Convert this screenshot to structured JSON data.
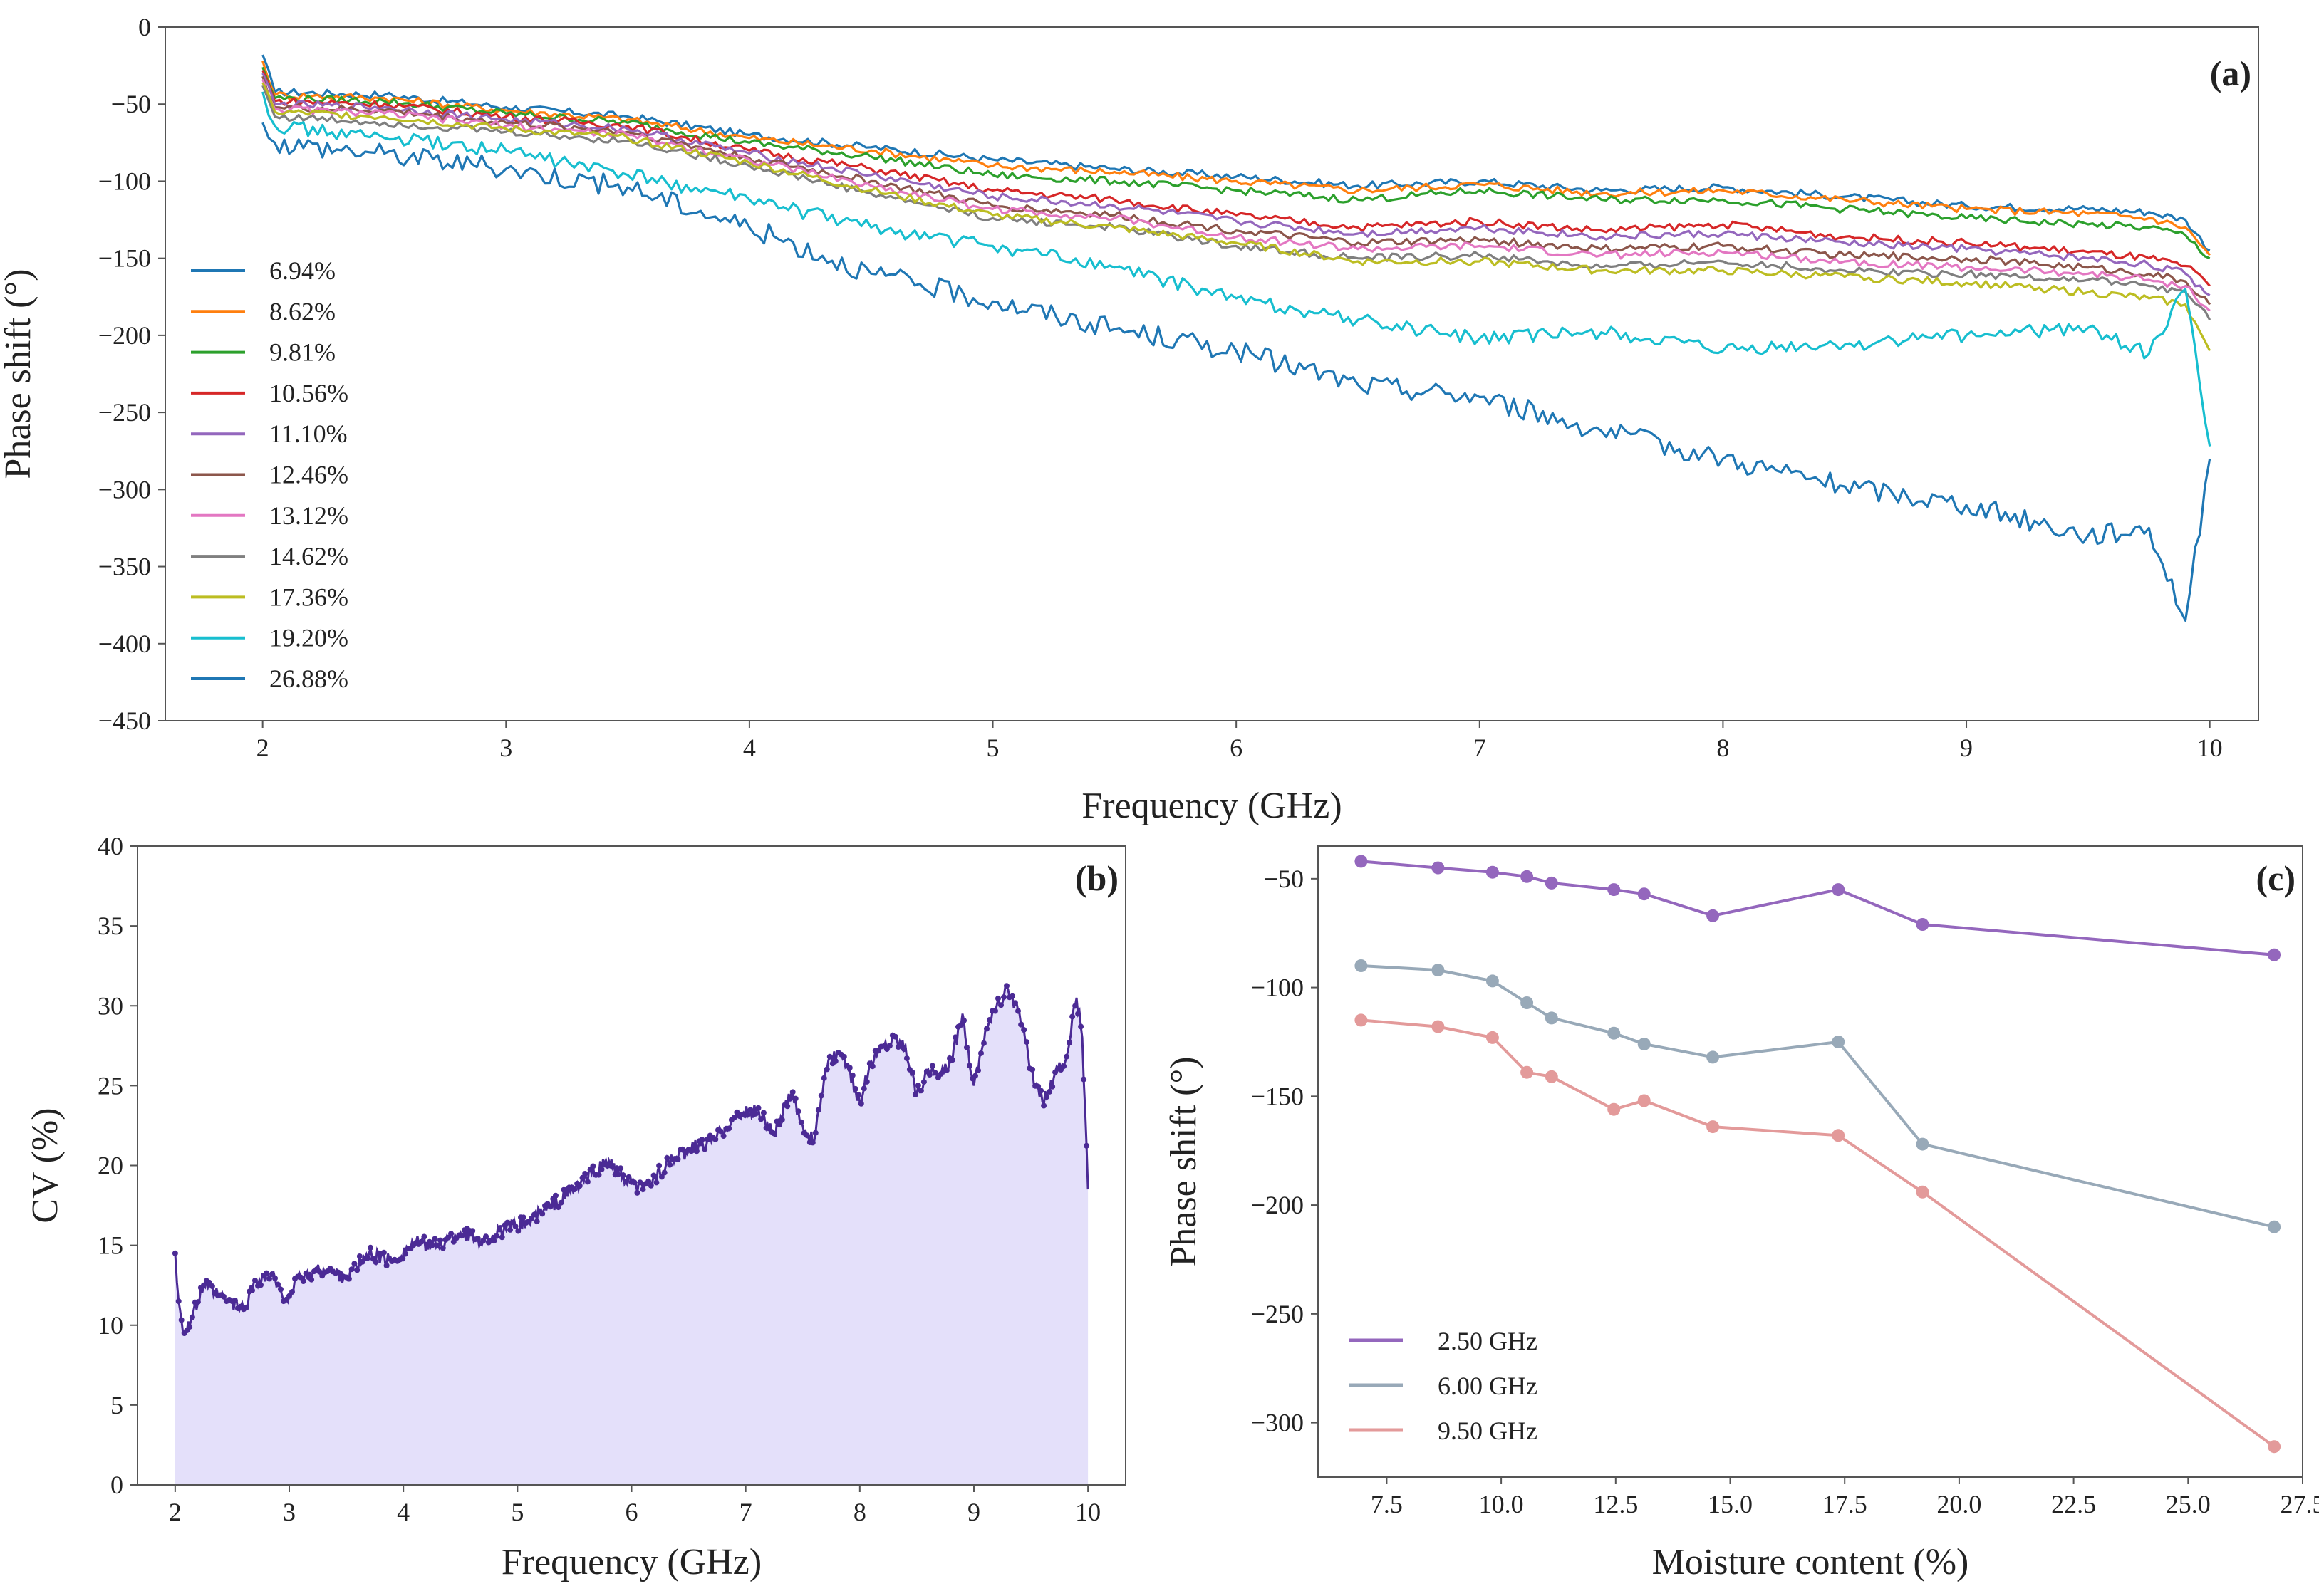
{
  "colors": {
    "blue": "#1f77b4",
    "orange": "#ff7f0e",
    "green": "#2ca02c",
    "red": "#d62728",
    "purple": "#9467bd",
    "brown": "#8c564b",
    "pink": "#e377c2",
    "gray": "#7f7f7f",
    "olive": "#bcbd22",
    "cyan": "#17becf",
    "axis": "#555555",
    "cv_line": "#4b2a95",
    "cv_fill": "#e4e0fa",
    "c_purple": "#9467bd",
    "c_slate": "#98a9b8",
    "c_red": "#e39a9a"
  },
  "chart_data": [
    {
      "id": "a",
      "panel_label": "(a)",
      "type": "line",
      "xlabel": "Frequency (GHz)",
      "ylabel": "Phase shift (°)",
      "xlim": [
        1.6,
        10.2
      ],
      "ylim": [
        -450,
        0
      ],
      "xticks": [
        2,
        3,
        4,
        5,
        6,
        7,
        8,
        9,
        10
      ],
      "yticks": [
        0,
        -50,
        -100,
        -150,
        -200,
        -250,
        -300,
        -350,
        -400,
        -450
      ],
      "ytick_labels": [
        "0",
        "−50",
        "−100",
        "−150",
        "−200",
        "−250",
        "−300",
        "−350",
        "−400",
        "−450"
      ],
      "legend_position": "left",
      "x": [
        2,
        2.05,
        2.5,
        3,
        3.5,
        4,
        4.5,
        5,
        5.5,
        6,
        6.5,
        7,
        7.5,
        8,
        8.5,
        9,
        9.5,
        9.75,
        9.9,
        10
      ],
      "series": [
        {
          "name": "6.94%",
          "color": "blue",
          "values": [
            -18,
            -42,
            -44,
            -52,
            -58,
            -70,
            -78,
            -86,
            -92,
            -97,
            -103,
            -100,
            -106,
            -104,
            -110,
            -116,
            -118,
            -120,
            -125,
            -145
          ]
        },
        {
          "name": "8.62%",
          "color": "orange",
          "values": [
            -22,
            -44,
            -46,
            -54,
            -60,
            -72,
            -80,
            -90,
            -94,
            -100,
            -106,
            -102,
            -108,
            -106,
            -112,
            -118,
            -121,
            -124,
            -130,
            -148
          ]
        },
        {
          "name": "9.81%",
          "color": "green",
          "values": [
            -26,
            -46,
            -48,
            -56,
            -62,
            -75,
            -84,
            -96,
            -100,
            -106,
            -112,
            -106,
            -112,
            -112,
            -118,
            -124,
            -128,
            -130,
            -135,
            -150
          ]
        },
        {
          "name": "10.56%",
          "color": "red",
          "values": [
            -28,
            -48,
            -50,
            -58,
            -64,
            -80,
            -92,
            -106,
            -112,
            -122,
            -130,
            -126,
            -132,
            -128,
            -136,
            -140,
            -146,
            -150,
            -155,
            -168
          ]
        },
        {
          "name": "11.10%",
          "color": "purple",
          "values": [
            -30,
            -50,
            -52,
            -60,
            -66,
            -82,
            -96,
            -110,
            -116,
            -126,
            -134,
            -130,
            -136,
            -134,
            -140,
            -144,
            -150,
            -154,
            -160,
            -174
          ]
        },
        {
          "name": "12.46%",
          "color": "brown",
          "values": [
            -32,
            -52,
            -54,
            -62,
            -68,
            -85,
            -100,
            -116,
            -122,
            -132,
            -140,
            -138,
            -144,
            -142,
            -148,
            -150,
            -156,
            -160,
            -165,
            -180
          ]
        },
        {
          "name": "13.12%",
          "color": "pink",
          "values": [
            -34,
            -53,
            -56,
            -64,
            -70,
            -86,
            -103,
            -118,
            -124,
            -136,
            -144,
            -142,
            -148,
            -146,
            -152,
            -156,
            -160,
            -164,
            -168,
            -184
          ]
        },
        {
          "name": "14.62%",
          "color": "gray",
          "values": [
            -38,
            -58,
            -62,
            -68,
            -74,
            -90,
            -108,
            -124,
            -130,
            -142,
            -150,
            -148,
            -156,
            -152,
            -158,
            -160,
            -164,
            -168,
            -172,
            -190
          ]
        },
        {
          "name": "17.36%",
          "color": "olive",
          "values": [
            -36,
            -55,
            -58,
            -66,
            -72,
            -88,
            -106,
            -122,
            -130,
            -140,
            -152,
            -152,
            -158,
            -158,
            -162,
            -166,
            -172,
            -176,
            -180,
            -210
          ]
        },
        {
          "name": "19.20%",
          "color": "cyan",
          "values": [
            -42,
            -64,
            -72,
            -80,
            -96,
            -112,
            -130,
            -142,
            -156,
            -176,
            -190,
            -202,
            -198,
            -210,
            -206,
            -200,
            -195,
            -212,
            -170,
            -272
          ]
        },
        {
          "name": "26.88%",
          "color": "blue",
          "values": [
            -62,
            -75,
            -82,
            -92,
            -104,
            -130,
            -160,
            -178,
            -196,
            -210,
            -232,
            -240,
            -262,
            -280,
            -298,
            -310,
            -330,
            -325,
            -385,
            -280
          ]
        }
      ]
    },
    {
      "id": "b",
      "panel_label": "(b)",
      "type": "area",
      "xlabel": "Frequency (GHz)",
      "ylabel": "CV (%)",
      "xlim": [
        1.67,
        10.33
      ],
      "ylim": [
        0,
        40
      ],
      "xticks": [
        2,
        3,
        4,
        5,
        6,
        7,
        8,
        9,
        10
      ],
      "yticks": [
        0,
        5,
        10,
        15,
        20,
        25,
        30,
        35,
        40
      ],
      "x": [
        2.0,
        2.03,
        2.08,
        2.15,
        2.25,
        2.35,
        2.45,
        2.6,
        2.7,
        2.85,
        2.95,
        3.1,
        3.3,
        3.5,
        3.7,
        3.9,
        4.1,
        4.3,
        4.5,
        4.7,
        4.9,
        5.1,
        5.3,
        5.5,
        5.65,
        5.8,
        5.95,
        6.1,
        6.3,
        6.5,
        6.7,
        6.9,
        7.1,
        7.25,
        7.4,
        7.5,
        7.6,
        7.7,
        7.8,
        7.9,
        8.0,
        8.1,
        8.2,
        8.3,
        8.4,
        8.5,
        8.6,
        8.7,
        8.8,
        8.9,
        9.0,
        9.1,
        9.2,
        9.3,
        9.4,
        9.5,
        9.6,
        9.7,
        9.8,
        9.9,
        9.95,
        10.0
      ],
      "values": [
        14.5,
        11.5,
        9.5,
        10.5,
        12.5,
        12.0,
        11.5,
        11.0,
        12.8,
        13.2,
        11.5,
        13.0,
        13.5,
        13.0,
        14.5,
        14.0,
        15.2,
        15.0,
        15.8,
        15.3,
        16.0,
        16.5,
        17.5,
        18.5,
        19.5,
        20.3,
        19.0,
        18.5,
        20.0,
        21.0,
        21.5,
        23.0,
        23.5,
        22.0,
        24.5,
        22.5,
        21.5,
        26.0,
        27.0,
        26.0,
        24.0,
        26.5,
        27.5,
        28.0,
        27.5,
        24.5,
        26.0,
        25.5,
        26.5,
        29.5,
        25.0,
        28.5,
        30.0,
        31.0,
        29.5,
        26.0,
        24.0,
        25.5,
        26.5,
        30.5,
        28.0,
        18.5
      ]
    },
    {
      "id": "c",
      "panel_label": "(c)",
      "type": "line",
      "xlabel": "Moisture content (%)",
      "ylabel": "Phase shift (°)",
      "xlim": [
        6.0,
        27.5
      ],
      "ylim": [
        -325,
        -35
      ],
      "xticks": [
        7.5,
        10.0,
        12.5,
        15.0,
        17.5,
        20.0,
        22.5,
        25.0,
        27.5
      ],
      "xtick_labels": [
        "7.5",
        "10.0",
        "12.5",
        "15.0",
        "17.5",
        "20.0",
        "22.5",
        "25.0",
        "27.5"
      ],
      "yticks": [
        -50,
        -100,
        -150,
        -200,
        -250,
        -300
      ],
      "ytick_labels": [
        "−50",
        "−100",
        "−150",
        "−200",
        "−250",
        "−300"
      ],
      "legend_position": "bottom-left",
      "x": [
        6.94,
        8.62,
        9.81,
        10.56,
        11.1,
        12.46,
        13.12,
        14.62,
        17.36,
        19.2,
        26.88
      ],
      "series": [
        {
          "name": "2.50 GHz",
          "color": "c_purple",
          "values": [
            -42,
            -45,
            -47,
            -49,
            -52,
            -55,
            -57,
            -67,
            -55,
            -71,
            -85
          ]
        },
        {
          "name": "6.00 GHz",
          "color": "c_slate",
          "values": [
            -90,
            -92,
            -97,
            -107,
            -114,
            -121,
            -126,
            -132,
            -125,
            -172,
            -210
          ]
        },
        {
          "name": "9.50 GHz",
          "color": "c_red",
          "values": [
            -115,
            -118,
            -123,
            -139,
            -141,
            -156,
            -152,
            -164,
            -168,
            -194,
            -311
          ]
        }
      ]
    }
  ]
}
